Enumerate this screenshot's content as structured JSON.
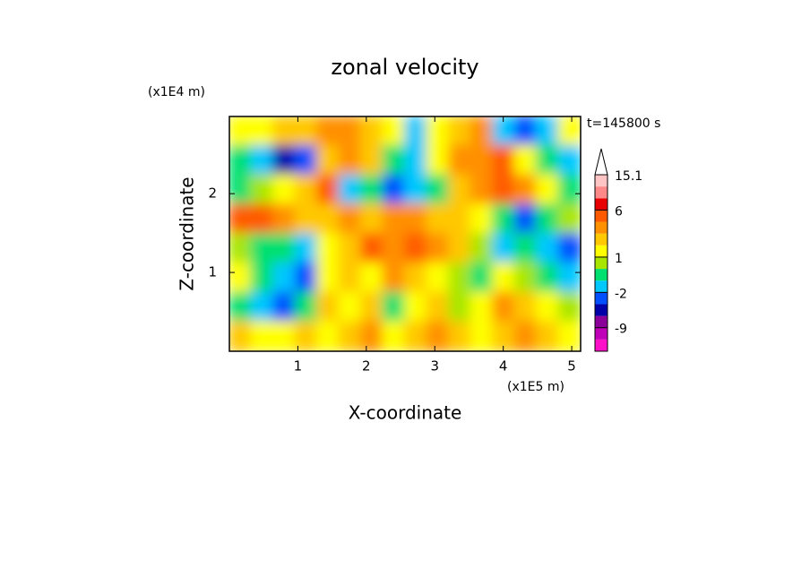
{
  "chart_data": {
    "type": "contour",
    "title": "zonal velocity",
    "x_label": "X-coordinate",
    "y_label": "Z-coordinate",
    "x_unit": "(x1E5 m)",
    "y_unit": "(x1E4 m)",
    "time_label": "t=145800 s",
    "xlim": [
      0,
      5.13
    ],
    "ylim": [
      0,
      2.98
    ],
    "xticks": [
      1,
      2,
      3,
      4,
      5
    ],
    "yticks": [
      1,
      2
    ],
    "colorbar": {
      "colors": [
        "#ff10c8",
        "#c000b8",
        "#8a0098",
        "#0000a8",
        "#0050ff",
        "#00c8ff",
        "#00e070",
        "#a8e600",
        "#ffff00",
        "#ffc800",
        "#ff9000",
        "#ff5a00",
        "#e80000",
        "#ff8888",
        "#ffc4c4"
      ],
      "boundaries": [
        null,
        -9,
        null,
        null,
        -2,
        null,
        null,
        1,
        null,
        null,
        null,
        6,
        null,
        null,
        15.1
      ]
    },
    "field": [
      [
        8,
        8,
        9,
        9,
        10,
        10,
        9,
        8,
        5,
        8,
        9,
        10,
        5,
        4,
        5,
        8
      ],
      [
        6,
        5,
        3,
        4,
        9,
        10,
        9,
        6,
        5,
        8,
        10,
        10,
        11,
        8,
        6,
        5
      ],
      [
        6,
        7,
        8,
        9,
        11,
        5,
        6,
        4,
        5,
        6,
        9,
        10,
        11,
        10,
        8,
        6
      ],
      [
        11,
        11,
        10,
        9,
        9,
        10,
        9,
        10,
        10,
        9,
        9,
        8,
        6,
        4,
        6,
        7
      ],
      [
        7,
        6,
        6,
        5,
        8,
        9,
        11,
        10,
        11,
        10,
        9,
        7,
        5,
        6,
        5,
        4
      ],
      [
        8,
        6,
        5,
        4,
        8,
        9,
        8,
        10,
        9,
        8,
        7,
        6,
        8,
        7,
        6,
        5
      ],
      [
        6,
        5,
        4,
        6,
        9,
        8,
        9,
        6,
        8,
        9,
        7,
        8,
        10,
        9,
        8,
        7
      ],
      [
        9,
        8,
        8,
        9,
        8,
        9,
        10,
        8,
        9,
        10,
        9,
        8,
        9,
        10,
        9,
        8
      ]
    ]
  }
}
